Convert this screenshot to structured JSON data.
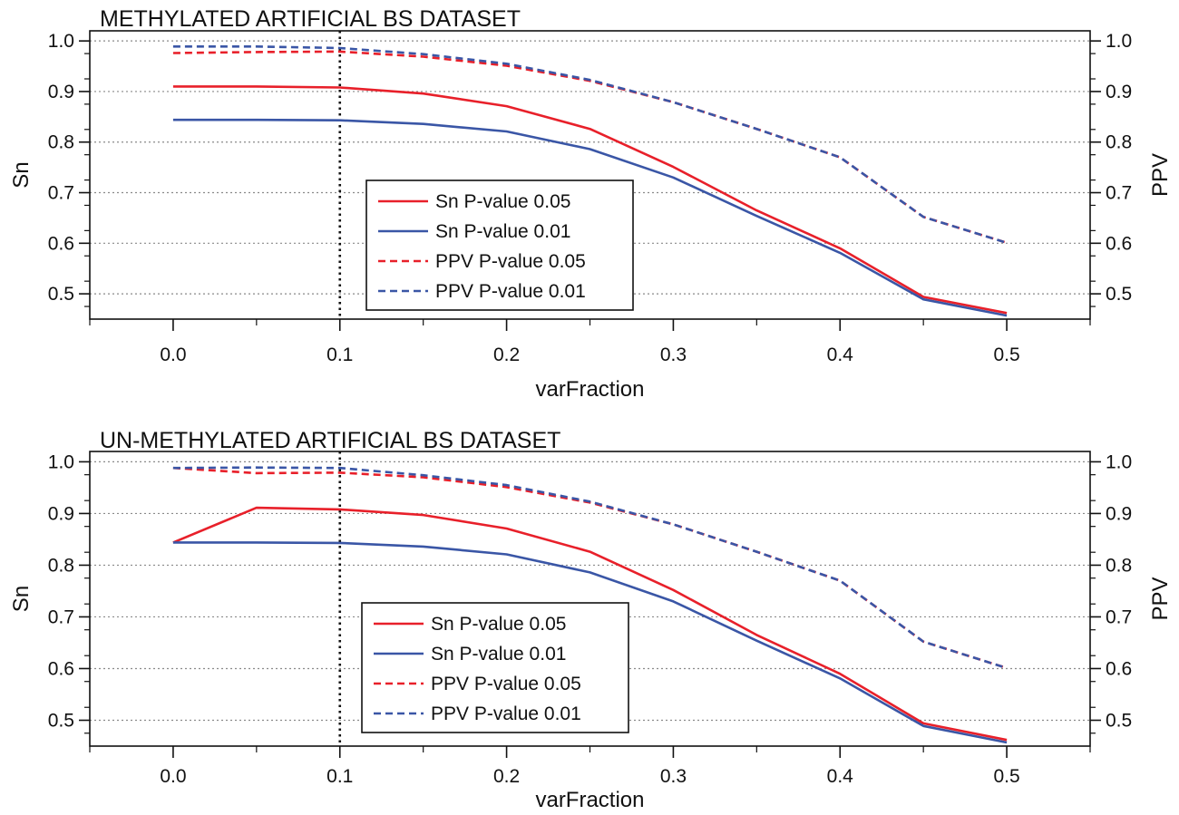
{
  "chart_data": [
    {
      "type": "line",
      "title": "METHYLATED ARTIFICIAL BS DATASET",
      "xlabel": "varFraction",
      "ylabel": "Sn",
      "y2label": "PPV",
      "xlim": [
        -0.05,
        0.55
      ],
      "ylim": [
        0.45,
        1.02
      ],
      "xticks": [
        "0.0",
        "0.1",
        "0.2",
        "0.3",
        "0.4",
        "0.5"
      ],
      "yticks": [
        "0.5",
        "0.6",
        "0.7",
        "0.8",
        "0.9",
        "1.0"
      ],
      "grid": "horizontal dotted",
      "vline_x": 0.1,
      "legend_position": "center",
      "x": [
        0,
        0.05,
        0.1,
        0.15,
        0.2,
        0.25,
        0.3,
        0.35,
        0.4,
        0.45,
        0.5
      ],
      "series": [
        {
          "name": "Sn P-value 0.05",
          "color": "#e8202a",
          "style": "solid",
          "values": [
            0.91,
            0.91,
            0.908,
            0.896,
            0.871,
            0.826,
            0.751,
            0.665,
            0.59,
            0.494,
            0.462
          ]
        },
        {
          "name": "Sn P-value 0.01",
          "color": "#3a56a6",
          "style": "solid",
          "values": [
            0.844,
            0.844,
            0.843,
            0.836,
            0.821,
            0.786,
            0.73,
            0.654,
            0.581,
            0.489,
            0.457
          ]
        },
        {
          "name": "PPV P-value 0.05",
          "color": "#e8202a",
          "style": "dashed",
          "values": [
            0.976,
            0.978,
            0.979,
            0.969,
            0.951,
            0.921,
            0.879,
            0.826,
            0.77,
            0.652,
            0.601
          ]
        },
        {
          "name": "PPV P-value 0.01",
          "color": "#3a56a6",
          "style": "dashed",
          "values": [
            0.989,
            0.989,
            0.986,
            0.974,
            0.955,
            0.923,
            0.879,
            0.826,
            0.77,
            0.652,
            0.601
          ]
        }
      ]
    },
    {
      "type": "line",
      "title": "UN-METHYLATED ARTIFICIAL BS DATASET",
      "xlabel": "varFraction",
      "ylabel": "Sn",
      "y2label": "PPV",
      "xlim": [
        -0.05,
        0.55
      ],
      "ylim": [
        0.45,
        1.02
      ],
      "xticks": [
        "0.0",
        "0.1",
        "0.2",
        "0.3",
        "0.4",
        "0.5"
      ],
      "yticks": [
        "0.5",
        "0.6",
        "0.7",
        "0.8",
        "0.9",
        "1.0"
      ],
      "grid": "horizontal dotted",
      "vline_x": 0.1,
      "legend_position": "center",
      "x": [
        0,
        0.05,
        0.1,
        0.15,
        0.2,
        0.25,
        0.3,
        0.35,
        0.4,
        0.45,
        0.5
      ],
      "series": [
        {
          "name": "Sn P-value 0.05",
          "color": "#e8202a",
          "style": "solid",
          "values": [
            0.844,
            0.911,
            0.908,
            0.897,
            0.871,
            0.826,
            0.752,
            0.665,
            0.59,
            0.494,
            0.462
          ]
        },
        {
          "name": "Sn P-value 0.01",
          "color": "#3a56a6",
          "style": "solid",
          "values": [
            0.844,
            0.844,
            0.843,
            0.836,
            0.821,
            0.786,
            0.73,
            0.654,
            0.581,
            0.489,
            0.457
          ]
        },
        {
          "name": "PPV P-value 0.05",
          "color": "#e8202a",
          "style": "dashed",
          "values": [
            0.988,
            0.978,
            0.979,
            0.97,
            0.951,
            0.921,
            0.879,
            0.826,
            0.77,
            0.652,
            0.601
          ]
        },
        {
          "name": "PPV P-value 0.01",
          "color": "#3a56a6",
          "style": "dashed",
          "values": [
            0.988,
            0.989,
            0.988,
            0.974,
            0.955,
            0.923,
            0.879,
            0.826,
            0.77,
            0.652,
            0.601
          ]
        }
      ]
    }
  ]
}
